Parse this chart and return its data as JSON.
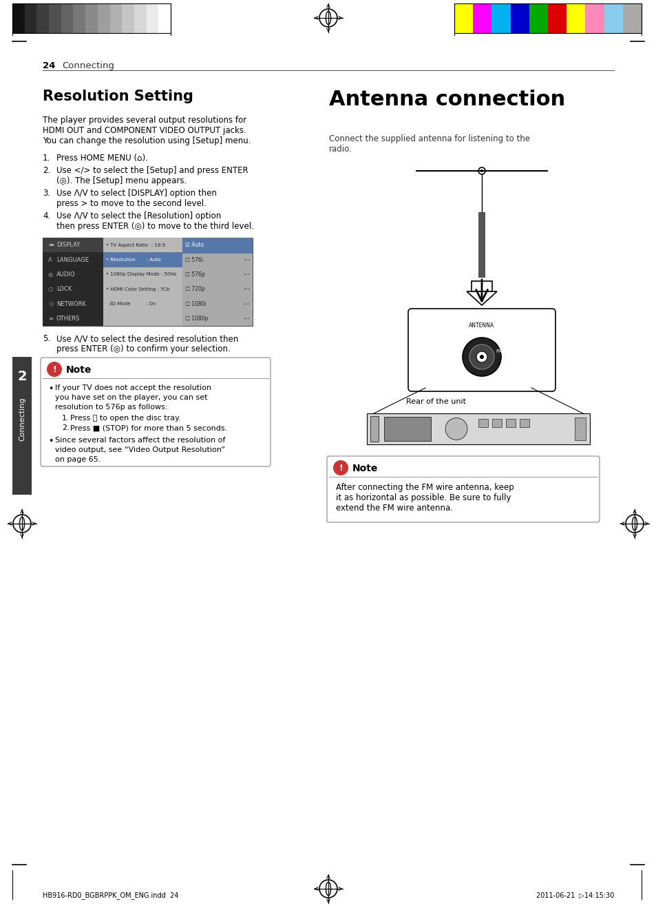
{
  "page_bg": "#ffffff",
  "page_number": "24",
  "page_section": "Connecting",
  "footer_text_left": "HB916-RD0_BGBRPPK_OM_ENG.indd  24",
  "footer_text_right": "2011-06-21  ▷14:15:30",
  "left_sidebar_text": "Connecting",
  "left_sidebar_number": "2",
  "section1_title": "Resolution Setting",
  "section1_body_lines": [
    "The player provides several output resolutions for",
    "HDMI OUT and COMPONENT VIDEO OUTPUT jacks.",
    "You can change the resolution using [Setup] menu."
  ],
  "section2_title": "Antenna connection",
  "section2_body_lines": [
    "Connect the supplied antenna for listening to the",
    "radio."
  ],
  "note1_body": "After connecting the FM wire antenna, keep\nit as horizontal as possible. Be sure to fully\nextend the FM wire antenna.",
  "rear_label": "Rear of the unit",
  "color_bar_left_colors": [
    "#111111",
    "#2a2a2a",
    "#3d3d3d",
    "#505050",
    "#636363",
    "#777777",
    "#8a8a8a",
    "#9e9e9e",
    "#b1b1b1",
    "#c5c5c5",
    "#d8d8d8",
    "#ebebeb",
    "#ffffff"
  ],
  "color_bar_right_colors": [
    "#ffff00",
    "#ff00ff",
    "#00b0f0",
    "#0000cc",
    "#00aa00",
    "#dd0000",
    "#ffff00",
    "#ff88bb",
    "#88ccee",
    "#aaaaaa"
  ],
  "menu_left_items": [
    "DISPLAY",
    "LANGUAGE",
    "AUDIO",
    "LOCK",
    "NETWORK",
    "OTHERS"
  ],
  "menu_mid_items": [
    "TV Aspect Ratio  : 16:9",
    "Resolution       : Auto",
    "1080p Display Mode : 50Hz",
    "HDMI Color Setting : YCb",
    "3D Mode          : On"
  ],
  "menu_right_items": [
    "Auto",
    "576i",
    "576p",
    "720p",
    "1080i",
    "1080p"
  ]
}
